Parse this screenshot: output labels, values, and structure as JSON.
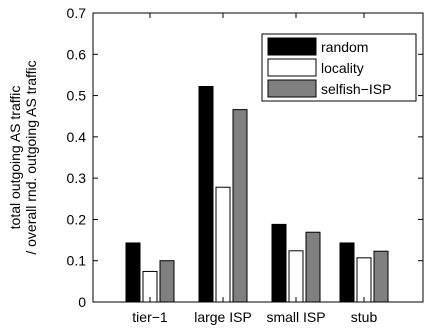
{
  "chart_data": {
    "type": "bar",
    "categories": [
      "tier−1",
      "large ISP",
      "small ISP",
      "stub"
    ],
    "series": [
      {
        "name": "random",
        "values": [
          0.143,
          0.522,
          0.188,
          0.143
        ],
        "color": "#000000"
      },
      {
        "name": "locality",
        "values": [
          0.074,
          0.278,
          0.124,
          0.107
        ],
        "color": "#ffffff"
      },
      {
        "name": "selfish−ISP",
        "values": [
          0.1,
          0.466,
          0.169,
          0.123
        ],
        "color": "#808080"
      }
    ],
    "ylabel_line1": "total outgoing AS traffic",
    "ylabel_line2": "/ overall rnd. outgoing AS traffic",
    "xlabel": "",
    "ylim": [
      0,
      0.7
    ],
    "yticks": [
      "0",
      "0.1",
      "0.2",
      "0.3",
      "0.4",
      "0.5",
      "0.6",
      "0.7"
    ],
    "grid": false,
    "legend_position": "top-right"
  }
}
